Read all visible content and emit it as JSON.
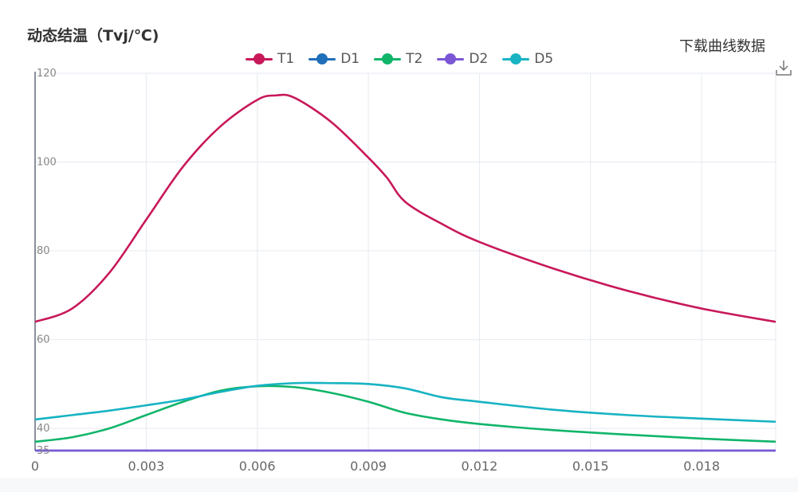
{
  "header": {
    "title": "动态结温（Tvj/℃)",
    "download_label": "下载曲线数据"
  },
  "icons": {
    "download": "download-icon"
  },
  "chart_data": {
    "type": "line",
    "title": "动态结温（Tvj/℃)",
    "xlabel": "",
    "ylabel": "",
    "xlim": [
      0,
      0.02
    ],
    "ylim": [
      35,
      120
    ],
    "x_ticks": [
      "0",
      "0.003",
      "0.006",
      "0.009",
      "0.012",
      "0.015",
      "0.018"
    ],
    "x_tick_values": [
      0,
      0.003,
      0.006,
      0.009,
      0.012,
      0.015,
      0.018
    ],
    "y_ticks": [
      "120",
      "100",
      "80",
      "60",
      "40",
      "35"
    ],
    "y_tick_values": [
      120,
      100,
      80,
      60,
      40,
      35
    ],
    "grid": true,
    "legend_position": "top-center",
    "series": [
      {
        "name": "T1",
        "color": "#c8185a",
        "x": [
          0,
          0.001,
          0.002,
          0.003,
          0.004,
          0.005,
          0.006,
          0.0065,
          0.007,
          0.008,
          0.009,
          0.0095,
          0.01,
          0.011,
          0.012,
          0.014,
          0.016,
          0.018,
          0.02
        ],
        "y": [
          64,
          67,
          75,
          87,
          99,
          108,
          114,
          115,
          114.5,
          109,
          101,
          96.5,
          91,
          86,
          82,
          76,
          71,
          67,
          64
        ]
      },
      {
        "name": "D1",
        "color": "#1f6fb8",
        "x": [
          0,
          0.02
        ],
        "y": [
          35,
          35
        ]
      },
      {
        "name": "T2",
        "color": "#10b56a",
        "x": [
          0,
          0.001,
          0.002,
          0.003,
          0.004,
          0.005,
          0.006,
          0.007,
          0.008,
          0.009,
          0.01,
          0.011,
          0.012,
          0.014,
          0.016,
          0.018,
          0.02
        ],
        "y": [
          37,
          38,
          40,
          43,
          46,
          48.5,
          49.5,
          49.3,
          48,
          46,
          43.5,
          42,
          41,
          39.6,
          38.6,
          37.7,
          37
        ]
      },
      {
        "name": "D2",
        "color": "#7b57d6",
        "x": [
          0,
          0.02
        ],
        "y": [
          35,
          35
        ]
      },
      {
        "name": "D5",
        "color": "#17b3c3",
        "x": [
          0,
          0.001,
          0.002,
          0.003,
          0.004,
          0.005,
          0.006,
          0.007,
          0.008,
          0.009,
          0.01,
          0.011,
          0.012,
          0.014,
          0.016,
          0.018,
          0.02
        ],
        "y": [
          42,
          43,
          44,
          45.2,
          46.5,
          48.2,
          49.6,
          50.2,
          50.2,
          50,
          49,
          47,
          46,
          44.2,
          43,
          42.2,
          41.5
        ]
      }
    ]
  }
}
